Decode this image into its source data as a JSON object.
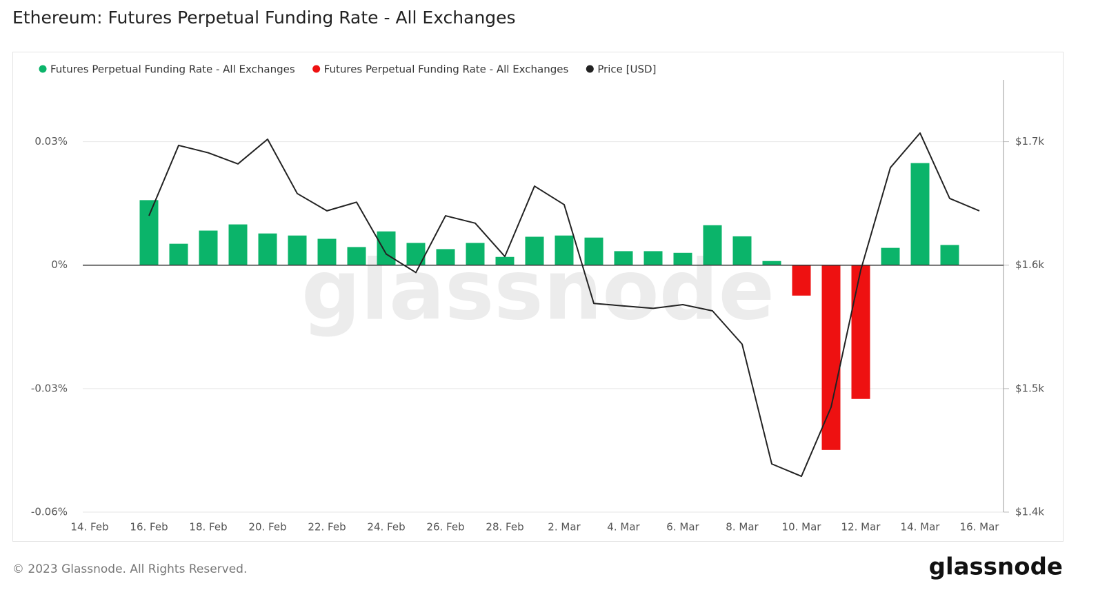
{
  "chart_data": {
    "type": "bar",
    "title": "Ethereum: Futures Perpetual Funding Rate - All Exchanges",
    "categories": [
      "14. Feb",
      null,
      "16. Feb",
      null,
      "18. Feb",
      null,
      "20. Feb",
      null,
      "22. Feb",
      null,
      "24. Feb",
      null,
      "26. Feb",
      null,
      "28. Feb",
      null,
      "2. Mar",
      null,
      "4. Mar",
      null,
      "6. Mar",
      null,
      "8. Mar",
      null,
      "10. Mar",
      null,
      "12. Mar",
      null,
      "14. Mar",
      null,
      "16. Mar"
    ],
    "series": [
      {
        "name": "Futures Perpetual Funding Rate - All Exchanges",
        "color": "#0bb46a",
        "type": "bar",
        "values": [
          null,
          null,
          0.0158,
          0.0052,
          0.0084,
          0.0099,
          0.0077,
          0.0072,
          0.0064,
          0.0044,
          0.0082,
          0.0054,
          0.0039,
          0.0054,
          0.002,
          0.0069,
          0.0072,
          0.0067,
          0.0034,
          0.0034,
          0.003,
          0.0097,
          0.007,
          0.001,
          null,
          null,
          null,
          0.0042,
          0.0248,
          0.0049,
          null
        ]
      },
      {
        "name": "Futures Perpetual Funding Rate - All Exchanges",
        "color": "#ee1111",
        "type": "bar",
        "values": [
          null,
          null,
          null,
          null,
          null,
          null,
          null,
          null,
          null,
          null,
          null,
          null,
          null,
          null,
          null,
          null,
          null,
          null,
          null,
          null,
          null,
          null,
          null,
          null,
          -0.0074,
          -0.0449,
          -0.0325,
          null,
          null,
          null,
          null
        ]
      },
      {
        "name": "Price [USD]",
        "color": "#222222",
        "type": "line",
        "axis": "y2",
        "values": [
          null,
          null,
          1640,
          1697,
          1691,
          1682,
          1702,
          1658,
          1644,
          1651,
          1609,
          1594,
          1640,
          1634,
          1607,
          1664,
          1649,
          1569,
          1567,
          1565,
          1568,
          1563,
          1536,
          1439,
          1429,
          1485,
          1596,
          1679,
          1707,
          1654,
          1644
        ]
      }
    ],
    "ylim": [
      -0.06,
      0.045
    ],
    "yticks": [
      {
        "value": 0.03,
        "label": "0.03%"
      },
      {
        "value": 0,
        "label": "0%"
      },
      {
        "value": -0.03,
        "label": "-0.03%"
      },
      {
        "value": -0.06,
        "label": "-0.06%"
      }
    ],
    "y2lim": [
      1400,
      1750
    ],
    "y2ticks": [
      {
        "value": 1700,
        "label": "$1.7k"
      },
      {
        "value": 1600,
        "label": "$1.6k"
      },
      {
        "value": 1500,
        "label": "$1.5k"
      },
      {
        "value": 1400,
        "label": "$1.4k"
      }
    ],
    "grid": true
  },
  "footer": "© 2023 Glassnode. All Rights Reserved.",
  "brand": "glassnode"
}
